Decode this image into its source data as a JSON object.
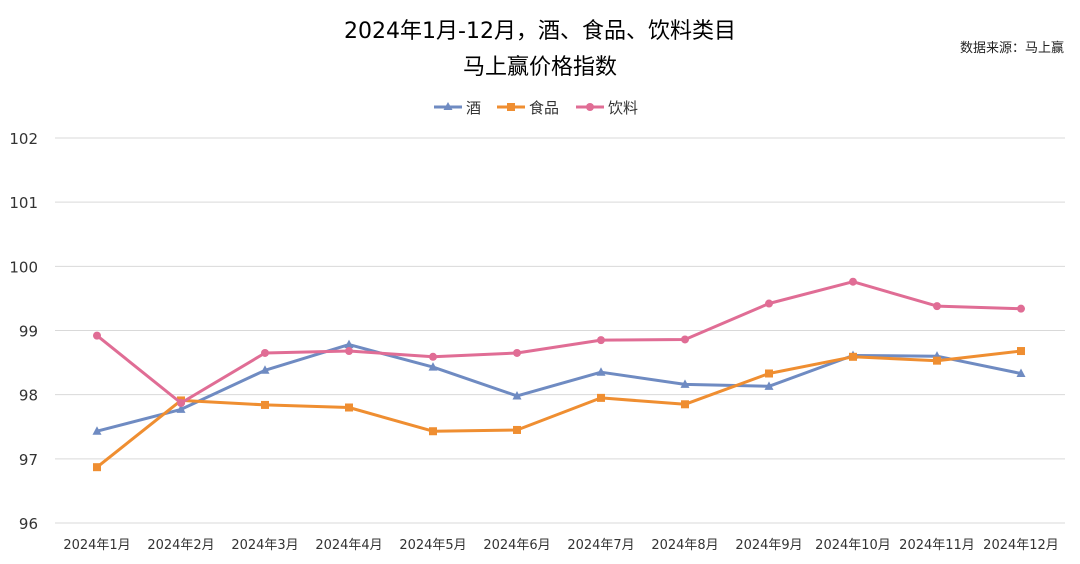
{
  "chart_data": {
    "type": "line",
    "title_line1": "2024年1月-12月，酒、食品、饮料类目",
    "title_line2": "马上赢价格指数",
    "source": "数据来源：马上赢",
    "categories": [
      "2024年1月",
      "2024年2月",
      "2024年3月",
      "2024年4月",
      "2024年5月",
      "2024年6月",
      "2024年7月",
      "2024年8月",
      "2024年9月",
      "2024年10月",
      "2024年11月",
      "2024年12月"
    ],
    "ylim": [
      96,
      102
    ],
    "yticks": [
      "96",
      "97",
      "98",
      "99",
      "100",
      "101",
      "102"
    ],
    "grid": true,
    "legend_position": "top-center",
    "series": [
      {
        "name": "酒",
        "color": "#6f8bc2",
        "marker": "triangle",
        "values": [
          97.43,
          97.77,
          98.38,
          98.78,
          98.43,
          97.98,
          98.35,
          98.16,
          98.13,
          98.61,
          98.6,
          98.33
        ]
      },
      {
        "name": "食品",
        "color": "#ef8e31",
        "marker": "square",
        "values": [
          96.87,
          97.91,
          97.84,
          97.8,
          97.43,
          97.45,
          97.95,
          97.85,
          98.33,
          98.59,
          98.53,
          98.68
        ]
      },
      {
        "name": "饮料",
        "color": "#e06d95",
        "marker": "circle",
        "values": [
          98.92,
          97.87,
          98.65,
          98.68,
          98.59,
          98.65,
          98.85,
          98.86,
          99.42,
          99.76,
          99.38,
          99.34
        ]
      }
    ]
  }
}
